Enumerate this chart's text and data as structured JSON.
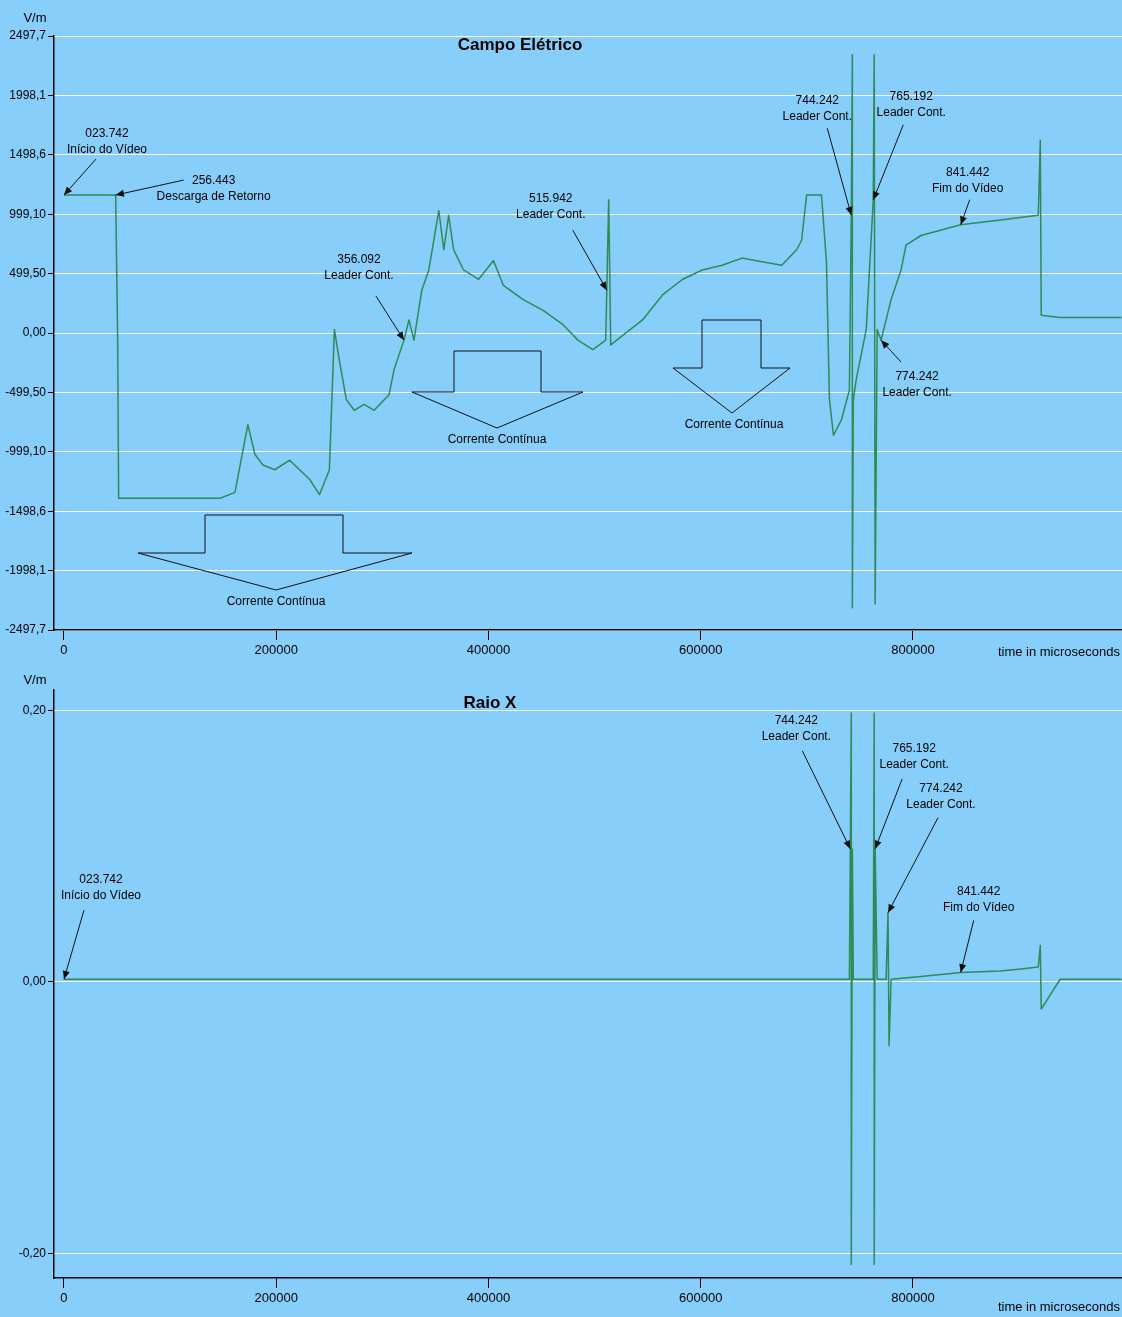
{
  "chart_data": [
    {
      "type": "line",
      "title": "Campo Elétrico",
      "xlabel": "time in microseconds",
      "ylabel": "V/m",
      "grid": "y",
      "legend": false,
      "marker": "none",
      "line_style": "solid",
      "xlim": [
        -9400,
        997000
      ],
      "xticks": [
        0,
        200000,
        400000,
        600000,
        800000
      ],
      "ylim": [
        -2497.7,
        2497.7
      ],
      "yticks": [
        {
          "value": 2497.7,
          "label": "2497,7"
        },
        {
          "value": 1998.1,
          "label": "1998,1"
        },
        {
          "value": 1498.6,
          "label": "1498,6"
        },
        {
          "value": 999.1,
          "label": "999,10"
        },
        {
          "value": 499.5,
          "label": "499,50"
        },
        {
          "value": 0,
          "label": "0,00"
        },
        {
          "value": -499.5,
          "label": "-499,50"
        },
        {
          "value": -999.1,
          "label": "-999,10"
        },
        {
          "value": -1498.6,
          "label": "-1498,6"
        },
        {
          "value": -1998.1,
          "label": "-1998,1"
        },
        {
          "value": -2497.7,
          "label": "-2497,7"
        }
      ],
      "series": [
        {
          "color": "#2e8b57",
          "x": [
            0,
            48700,
            50600,
            51500,
            147100,
            161100,
            173300,
            179900,
            187400,
            198600,
            212700,
            222000,
            231400,
            240800,
            250100,
            254800,
            259500,
            266100,
            273500,
            282900,
            292300,
            306300,
            311000,
            320400,
            325100,
            329800,
            337200,
            343800,
            348500,
            353200,
            357900,
            362500,
            367200,
            376600,
            390600,
            404700,
            414100,
            432800,
            451500,
            470300,
            484300,
            498400,
            510500,
            513300,
            515200,
            526500,
            545200,
            564000,
            582700,
            601400,
            620200,
            638900,
            657600,
            676400,
            690400,
            695100,
            699800,
            713800,
            718500,
            721300,
            725100,
            732600,
            740100,
            741900,
            742900,
            742900,
            743800,
            746600,
            756000,
            762600,
            763500,
            764400,
            766300,
            770000,
            774700,
            779400,
            788800,
            793500,
            807500,
            845000,
            882500,
            918100,
            920000,
            920900,
            938700,
            996700
          ],
          "values": [
            1160,
            1160,
            -60,
            -1390,
            -1390,
            -1340,
            -770,
            -1020,
            -1110,
            -1150,
            -1070,
            -1150,
            -1230,
            -1360,
            -1150,
            30,
            -230,
            -560,
            -650,
            -600,
            -650,
            -520,
            -310,
            -60,
            110,
            -60,
            360,
            530,
            780,
            1030,
            700,
            990,
            700,
            530,
            450,
            610,
            400,
            280,
            190,
            70,
            -60,
            -140,
            -60,
            1120,
            -100,
            -20,
            110,
            320,
            450,
            530,
            570,
            630,
            600,
            570,
            700,
            780,
            1160,
            1160,
            600,
            -560,
            -860,
            -730,
            -480,
            990,
            2340,
            -2310,
            -560,
            -390,
            30,
            1120,
            2340,
            -2280,
            30,
            -60,
            110,
            280,
            530,
            740,
            820,
            910,
            950,
            990,
            1620,
            150,
            130,
            130
          ]
        }
      ],
      "annotations": [
        {
          "text": "023.742\nInício do Vídeo",
          "x": 0,
          "y": 1160
        },
        {
          "text": "256.443\nDescarga de Retorno",
          "x": 48700,
          "y": 1160
        },
        {
          "text": "356.092\nLeader Cont.",
          "x": 320400,
          "y": -60
        },
        {
          "text": "515.942\nLeader Cont.",
          "x": 511500,
          "y": 360
        },
        {
          "text": "744.242\nLeader Cont.",
          "x": 741900,
          "y": 990
        },
        {
          "text": "765.192\nLeader Cont.",
          "x": 762600,
          "y": 1120
        },
        {
          "text": "841.442\nFim do Vídeo",
          "x": 845000,
          "y": 910
        },
        {
          "text": "774.242\nLeader Cont.",
          "x": 770000,
          "y": -60
        },
        "Corrente Contínua",
        "Corrente Contínua",
        "Corrente Contínua"
      ]
    },
    {
      "type": "line",
      "title": "Raio X",
      "xlabel": "time in microseconds",
      "ylabel": "V/m",
      "grid": "y",
      "legend": false,
      "marker": "none",
      "line_style": "solid",
      "xlim": [
        -9400,
        997000
      ],
      "xticks": [
        0,
        200000,
        400000,
        600000,
        800000
      ],
      "ylim": [
        -0.218,
        0.215
      ],
      "yticks": [
        {
          "value": 0.2,
          "label": "0,20"
        },
        {
          "value": 0,
          "label": "0,00"
        },
        {
          "value": -0.2,
          "label": "-0,20"
        }
      ],
      "series": [
        {
          "color": "#2e8b57",
          "x": [
            0,
            147100,
            400000,
            740100,
            741000,
            741900,
            741900,
            742900,
            743800,
            762600,
            763500,
            763500,
            764400,
            766300,
            774700,
            776500,
            777500,
            779400,
            807500,
            845000,
            882500,
            918100,
            920000,
            920900,
            938700,
            996700
          ],
          "values": [
            0.002,
            0.002,
            0.002,
            0.002,
            0.098,
            0.198,
            -0.208,
            0.098,
            0.002,
            0.002,
            0.198,
            -0.208,
            0.098,
            0.002,
            0.002,
            0.051,
            -0.047,
            0.002,
            0.004,
            0.007,
            0.008,
            0.011,
            0.027,
            -0.02,
            0.002,
            0.002
          ]
        }
      ],
      "annotations": [
        {
          "text": "023.742\nInício do Vídeo",
          "x": 0,
          "y": 0.002
        },
        {
          "text": "744.242\nLeader Cont.",
          "x": 741000,
          "y": 0.098
        },
        {
          "text": "765.192\nLeader Cont.",
          "x": 764400,
          "y": 0.098
        },
        {
          "text": "774.242\nLeader Cont.",
          "x": 776500,
          "y": 0.051
        },
        {
          "text": "841.442\nFim do Vídeo",
          "x": 845000,
          "y": 0.007
        }
      ]
    }
  ]
}
